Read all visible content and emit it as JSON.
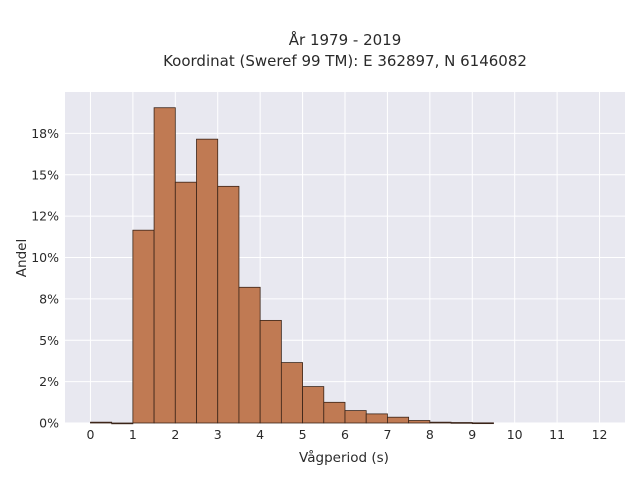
{
  "chart_data": {
    "type": "bar",
    "title_lines": [
      "År 1979 - 2019",
      "Koordinat (Sweref 99 TM): E 362897, N 6146082"
    ],
    "xlabel": "Vågperiod (s)",
    "ylabel": "Andel",
    "xlim": [
      -0.6,
      12.6
    ],
    "ylim": [
      0,
      0.2
    ],
    "x_ticks": [
      0,
      1,
      2,
      3,
      4,
      5,
      6,
      7,
      8,
      9,
      10,
      11,
      12
    ],
    "x_tick_labels": [
      "0",
      "1",
      "2",
      "3",
      "4",
      "5",
      "6",
      "7",
      "8",
      "9",
      "10",
      "11",
      "12"
    ],
    "y_ticks": [
      0,
      0.025,
      0.05,
      0.075,
      0.1,
      0.125,
      0.15,
      0.175
    ],
    "y_tick_labels": [
      "0%",
      "2%",
      "5%",
      "8%",
      "10%",
      "12%",
      "15%",
      "18%"
    ],
    "bin_width": 0.5,
    "bins": [
      {
        "start": 0.0,
        "end": 0.5,
        "value": 0.0005
      },
      {
        "start": 0.5,
        "end": 1.0,
        "value": 0.0
      },
      {
        "start": 1.0,
        "end": 1.5,
        "value": 0.1165
      },
      {
        "start": 1.5,
        "end": 2.0,
        "value": 0.1905
      },
      {
        "start": 2.0,
        "end": 2.5,
        "value": 0.1455
      },
      {
        "start": 2.5,
        "end": 3.0,
        "value": 0.1715
      },
      {
        "start": 3.0,
        "end": 3.5,
        "value": 0.143
      },
      {
        "start": 3.5,
        "end": 4.0,
        "value": 0.082
      },
      {
        "start": 4.0,
        "end": 4.5,
        "value": 0.062
      },
      {
        "start": 4.5,
        "end": 5.0,
        "value": 0.0365
      },
      {
        "start": 5.0,
        "end": 5.5,
        "value": 0.022
      },
      {
        "start": 5.5,
        "end": 6.0,
        "value": 0.0125
      },
      {
        "start": 6.0,
        "end": 6.5,
        "value": 0.0075
      },
      {
        "start": 6.5,
        "end": 7.0,
        "value": 0.0055
      },
      {
        "start": 7.0,
        "end": 7.5,
        "value": 0.0035
      },
      {
        "start": 7.5,
        "end": 8.0,
        "value": 0.0015
      },
      {
        "start": 8.0,
        "end": 8.5,
        "value": 0.0005
      },
      {
        "start": 8.5,
        "end": 9.0,
        "value": 0.0003
      },
      {
        "start": 9.0,
        "end": 9.5,
        "value": 0.0001
      }
    ],
    "grid": true,
    "legend": "none",
    "colors": {
      "bar_fill": "#c07a53",
      "bar_edge": "#3a2418",
      "plot_background": "#e8e8f0",
      "grid": "#ffffff",
      "text": "#2a2a2a"
    }
  }
}
